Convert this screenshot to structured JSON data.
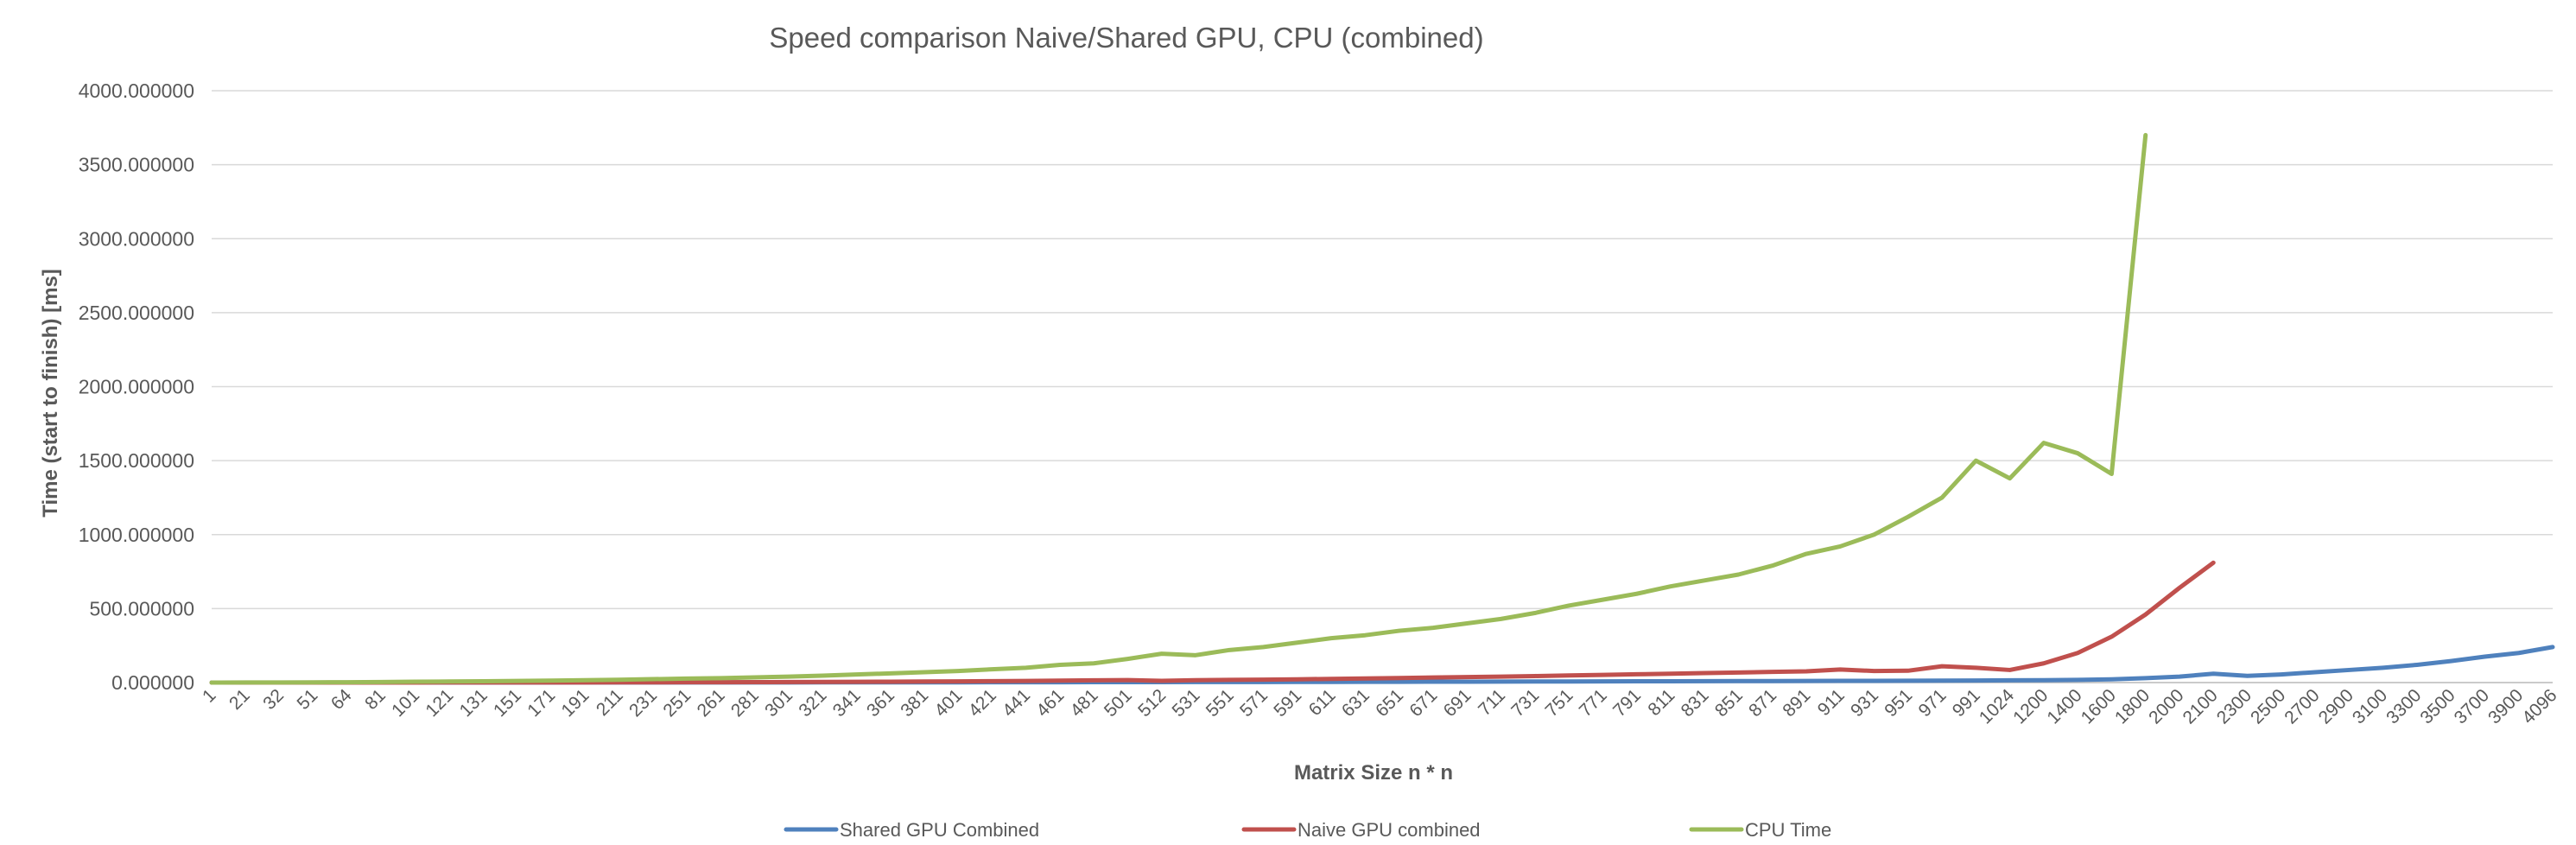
{
  "chart_data": {
    "type": "line",
    "title": "Speed comparison Naive/Shared GPU, CPU (combined)",
    "xlabel": "Matrix Size n * n",
    "ylabel": "Time (start to finish) [ms]",
    "ylim": [
      0,
      4000
    ],
    "y_ticks": [
      "0.000000",
      "500.000000",
      "1000.000000",
      "1500.000000",
      "2000.000000",
      "2500.000000",
      "3000.000000",
      "3500.000000",
      "4000.000000"
    ],
    "grid": true,
    "legend_position": "bottom",
    "x_tick_labels": [
      "1",
      "21",
      "32",
      "51",
      "64",
      "81",
      "101",
      "121",
      "131",
      "151",
      "171",
      "191",
      "211",
      "231",
      "251",
      "261",
      "281",
      "301",
      "321",
      "341",
      "361",
      "381",
      "401",
      "421",
      "441",
      "461",
      "481",
      "501",
      "512",
      "531",
      "551",
      "571",
      "591",
      "611",
      "631",
      "651",
      "671",
      "691",
      "711",
      "731",
      "751",
      "771",
      "791",
      "811",
      "831",
      "851",
      "871",
      "891",
      "911",
      "931",
      "951",
      "971",
      "991",
      "1024",
      "1200",
      "1400",
      "1600",
      "1800",
      "2000",
      "2100",
      "2300",
      "2500",
      "2700",
      "2900",
      "3100",
      "3300",
      "3500",
      "3700",
      "3900",
      "4096"
    ],
    "series": [
      {
        "name": "Shared GPU Combined",
        "color": "#4f81bd",
        "values": [
          0.1,
          0.1,
          0.1,
          0.1,
          0.1,
          0.1,
          0.2,
          0.2,
          0.2,
          0.3,
          0.3,
          0.4,
          0.5,
          0.6,
          0.7,
          0.8,
          0.9,
          1,
          1.1,
          1.2,
          1.4,
          1.5,
          1.7,
          1.9,
          2.1,
          2.3,
          2.6,
          2.8,
          3,
          3.3,
          3.6,
          3.9,
          4.2,
          4.5,
          4.9,
          5.3,
          5.7,
          6.1,
          6.5,
          7,
          7.5,
          8,
          8.5,
          9,
          9.5,
          10,
          10.5,
          11,
          11.5,
          12,
          12.5,
          13,
          14,
          15,
          16,
          18,
          22,
          30,
          40,
          60,
          45,
          55,
          70,
          85,
          100,
          120,
          145,
          175,
          200,
          240
        ]
      },
      {
        "name": "Naive GPU combined",
        "color": "#c0504d",
        "values": [
          0.1,
          0.1,
          0.1,
          0.1,
          0.2,
          0.2,
          0.3,
          0.4,
          0.5,
          0.6,
          0.8,
          1,
          1.3,
          1.6,
          2,
          2.4,
          2.9,
          3.5,
          4.2,
          5,
          6,
          7,
          8,
          9.5,
          11,
          13,
          15,
          17,
          12,
          16,
          18,
          20,
          22,
          25,
          28,
          31,
          34,
          37,
          40,
          44,
          48,
          52,
          56,
          60,
          64,
          68,
          72,
          76,
          88,
          78,
          80,
          110,
          100,
          85,
          130,
          200,
          310,
          460,
          640,
          810,
          null,
          null,
          null,
          null,
          null,
          null,
          null,
          null,
          null,
          null
        ]
      },
      {
        "name": "CPU Time",
        "color": "#9bbb59",
        "values": [
          0.2,
          0.4,
          0.8,
          1.5,
          2.5,
          4,
          5.5,
          7.5,
          9,
          11,
          13,
          16,
          19,
          23,
          27,
          30,
          35,
          40,
          47,
          55,
          62,
          70,
          78,
          90,
          100,
          120,
          130,
          160,
          195,
          185,
          220,
          240,
          270,
          300,
          320,
          350,
          370,
          400,
          430,
          470,
          520,
          560,
          600,
          650,
          690,
          730,
          790,
          870,
          920,
          1000,
          1120,
          1250,
          1500,
          1380,
          1620,
          1550,
          1410,
          3700,
          null,
          null,
          null,
          null,
          null,
          null,
          null,
          null,
          null,
          null,
          null,
          null
        ]
      }
    ]
  }
}
